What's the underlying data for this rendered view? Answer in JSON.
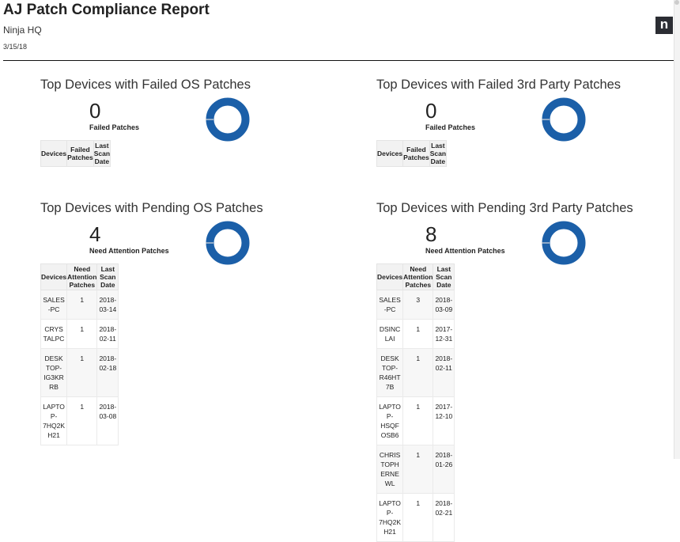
{
  "header": {
    "title": "AJ Patch Compliance Report",
    "organization": "Ninja HQ",
    "date": "3/15/18",
    "logo": "n"
  },
  "colors": {
    "donut": "#1b5fa8",
    "donut_gap": "#dddddd"
  },
  "panels": [
    {
      "title": "Top Devices with Failed OS Patches",
      "count": "0",
      "count_label": "Failed Patches",
      "columns": [
        "Devices",
        "Failed Patches",
        "Last Scan Date"
      ],
      "rows": []
    },
    {
      "title": "Top Devices with Failed 3rd Party Patches",
      "count": "0",
      "count_label": "Failed Patches",
      "columns": [
        "Devices",
        "Failed Patches",
        "Last Scan Date"
      ],
      "rows": []
    },
    {
      "title": "Top Devices with Pending OS Patches",
      "count": "4",
      "count_label": "Need Attention Patches",
      "columns": [
        "Devices",
        "Need Attention Patches",
        "Last Scan Date"
      ],
      "rows": [
        [
          "SALES-PC",
          "1",
          "2018-03-14"
        ],
        [
          "CRYSTALPC",
          "1",
          "2018-02-11"
        ],
        [
          "DESKTOP-IG3KRRB",
          "1",
          "2018-02-18"
        ],
        [
          "LAPTOP-7HQ2KH21",
          "1",
          "2018-03-08"
        ]
      ]
    },
    {
      "title": "Top Devices with Pending 3rd Party Patches",
      "count": "8",
      "count_label": "Need Attention Patches",
      "columns": [
        "Devices",
        "Need Attention Patches",
        "Last Scan Date"
      ],
      "rows": [
        [
          "SALES-PC",
          "3",
          "2018-03-09"
        ],
        [
          "DSINCLAI",
          "1",
          "2017-12-31"
        ],
        [
          "DESKTOP-R46HT7B",
          "1",
          "2018-02-11"
        ],
        [
          "LAPTOP-HSQFOSB6",
          "1",
          "2017-12-10"
        ],
        [
          "CHRISTOPHERNEWL",
          "1",
          "2018-01-26"
        ],
        [
          "LAPTOP-7HQ2KH21",
          "1",
          "2018-02-21"
        ]
      ]
    }
  ]
}
